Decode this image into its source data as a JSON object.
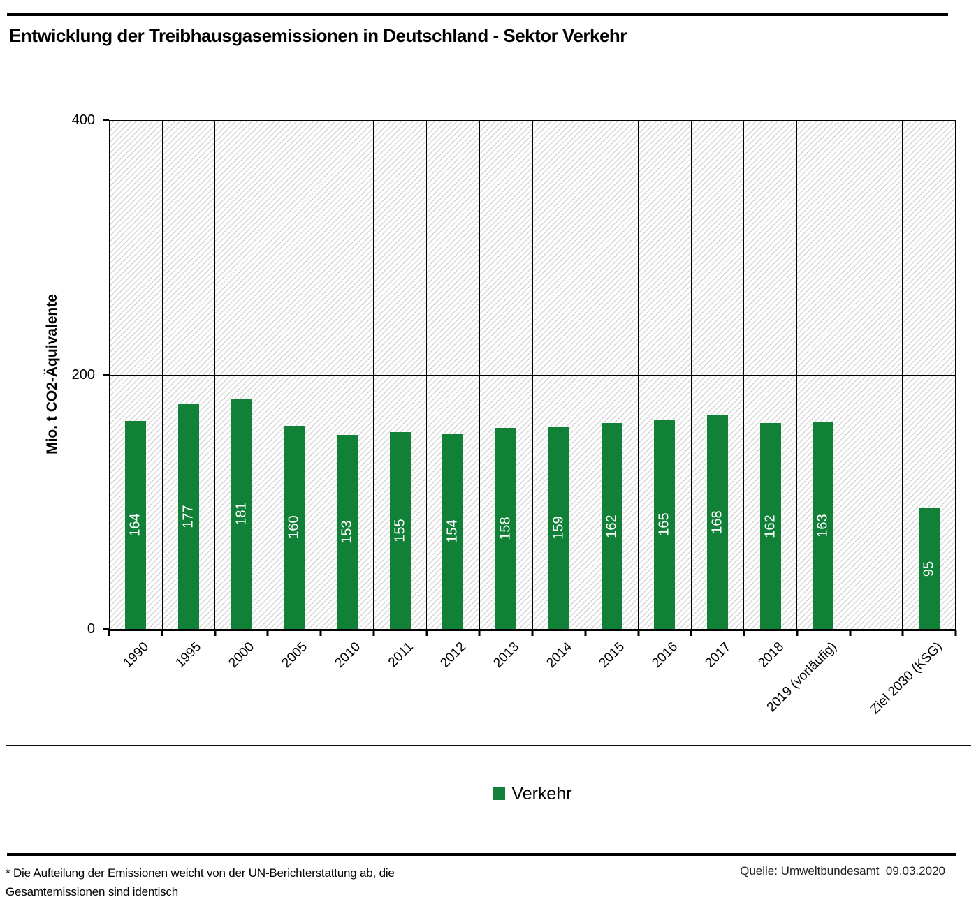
{
  "title": "Entwicklung der Treibhausgasemissionen in Deutschland - Sektor Verkehr",
  "chart_data": {
    "type": "bar",
    "categories": [
      "1990",
      "1995",
      "2000",
      "2005",
      "2010",
      "2011",
      "2012",
      "2013",
      "2014",
      "2015",
      "2016",
      "2017",
      "2018",
      "2019 (vorläufig)",
      "",
      "Ziel 2030 (KSG)"
    ],
    "values": [
      164,
      177,
      181,
      160,
      153,
      155,
      154,
      158,
      159,
      162,
      165,
      168,
      162,
      163,
      null,
      95
    ],
    "title": "Entwicklung der Treibhausgasemissionen in Deutschland - Sektor Verkehr",
    "xlabel": "",
    "ylabel": "Mio. t CO2-Äquivalente",
    "ylim": [
      0,
      400
    ],
    "yticks": [
      0,
      200,
      400
    ],
    "ytick_labels": [
      "0",
      "200",
      "400"
    ],
    "grid": "horizontal line at 200, vertical separators between categories, hatched plot background",
    "legend_position": "bottom-center",
    "series_name": "Verkehr",
    "bar_color": "#128138",
    "value_label_color": "#ffffff",
    "hatch_line_color": "#d6d6d6"
  },
  "legend": {
    "items": [
      {
        "label": "Verkehr",
        "color": "#128138"
      }
    ]
  },
  "footer": {
    "note_line1": "* Die Aufteilung der Emissionen weicht von der UN-Berichterstattung ab, die",
    "note_line2": "Gesamtemissionen sind identisch",
    "source": "Quelle: Umweltbundesamt  09.03.2020"
  }
}
